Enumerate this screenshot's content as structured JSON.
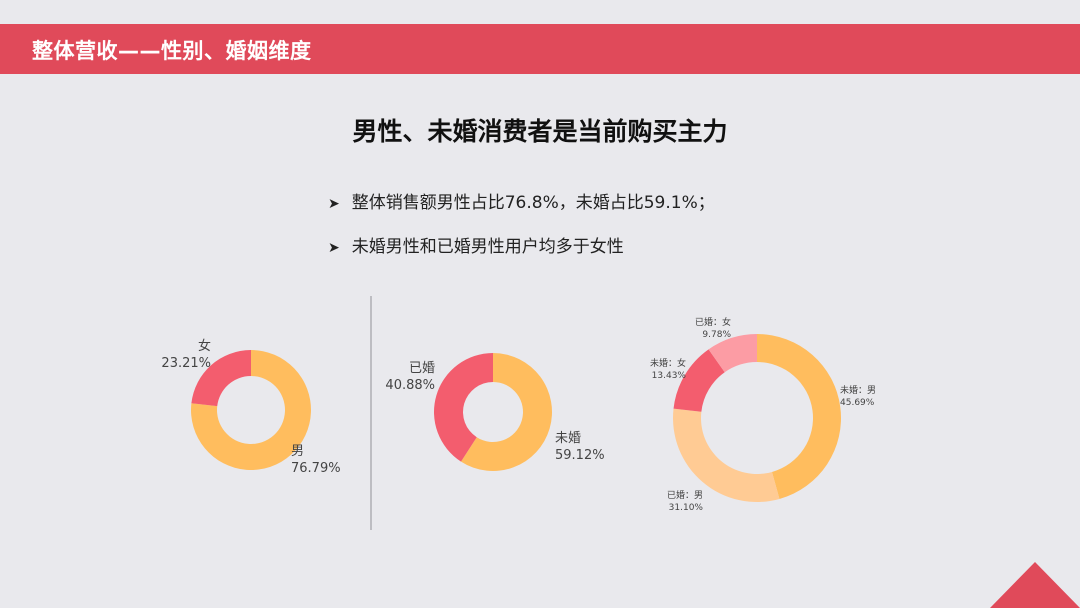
{
  "header": {
    "title": "整体营收——性别、婚姻维度"
  },
  "headline": "男性、未婚消费者是当前购买主力",
  "bullets": [
    "整体销售额男性占比76.8%，未婚占比59.1%；",
    "未婚男性和已婚男性用户均多于女性"
  ],
  "colors": {
    "header": "#e04a5a",
    "orange": "#ffbd5e",
    "red": "#f35d6e",
    "light_orange": "#ffcb94",
    "pink": "#fc9ca4"
  },
  "chart_data": [
    {
      "type": "pie",
      "variant": "donut",
      "slices": [
        {
          "label": "男",
          "value": 76.79,
          "display": "76.79%",
          "color": "#ffbd5e"
        },
        {
          "label": "女",
          "value": 23.21,
          "display": "23.21%",
          "color": "#f35d6e"
        }
      ]
    },
    {
      "type": "pie",
      "variant": "donut",
      "slices": [
        {
          "label": "未婚",
          "value": 59.12,
          "display": "59.12%",
          "color": "#ffbd5e"
        },
        {
          "label": "已婚",
          "value": 40.88,
          "display": "40.88%",
          "color": "#f35d6e"
        }
      ]
    },
    {
      "type": "pie",
      "variant": "donut",
      "slices": [
        {
          "label": "未婚：男",
          "value": 45.69,
          "display": "45.69%",
          "color": "#ffbd5e"
        },
        {
          "label": "已婚：男",
          "value": 31.1,
          "display": "31.10%",
          "color": "#ffcb94"
        },
        {
          "label": "未婚：女",
          "value": 13.43,
          "display": "13.43%",
          "color": "#f35d6e"
        },
        {
          "label": "已婚：女",
          "value": 9.78,
          "display": "9.78%",
          "color": "#fc9ca4"
        }
      ]
    }
  ]
}
